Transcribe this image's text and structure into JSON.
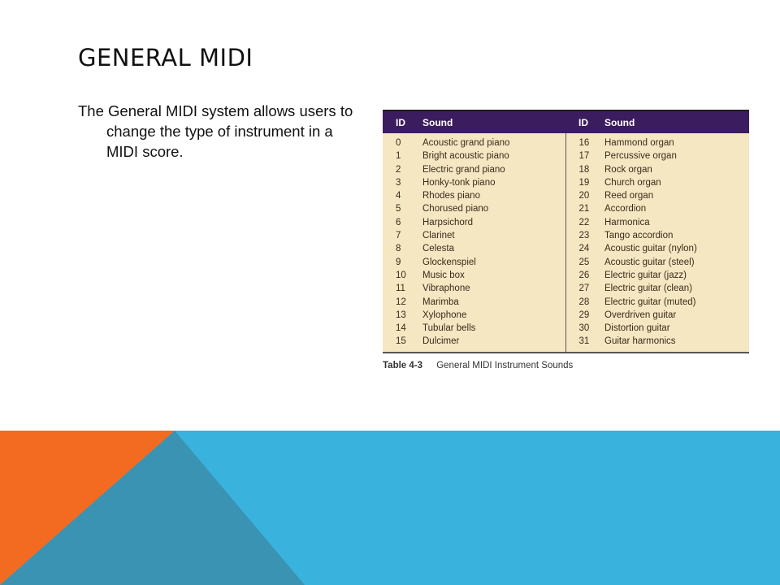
{
  "slide": {
    "title": "GENERAL MIDI",
    "body": "The General MIDI system allows users to change the type of instrument in a MIDI score."
  },
  "table": {
    "headers": {
      "id": "ID",
      "sound": "Sound"
    },
    "rows": [
      {
        "id1": "0",
        "sound1": "Acoustic grand piano",
        "id2": "16",
        "sound2": "Hammond organ"
      },
      {
        "id1": "1",
        "sound1": "Bright acoustic piano",
        "id2": "17",
        "sound2": "Percussive organ"
      },
      {
        "id1": "2",
        "sound1": "Electric grand piano",
        "id2": "18",
        "sound2": "Rock organ"
      },
      {
        "id1": "3",
        "sound1": "Honky-tonk piano",
        "id2": "19",
        "sound2": "Church organ"
      },
      {
        "id1": "4",
        "sound1": "Rhodes piano",
        "id2": "20",
        "sound2": "Reed organ"
      },
      {
        "id1": "5",
        "sound1": "Chorused piano",
        "id2": "21",
        "sound2": "Accordion"
      },
      {
        "id1": "6",
        "sound1": "Harpsichord",
        "id2": "22",
        "sound2": "Harmonica"
      },
      {
        "id1": "7",
        "sound1": "Clarinet",
        "id2": "23",
        "sound2": "Tango accordion"
      },
      {
        "id1": "8",
        "sound1": "Celesta",
        "id2": "24",
        "sound2": "Acoustic guitar (nylon)"
      },
      {
        "id1": "9",
        "sound1": "Glockenspiel",
        "id2": "25",
        "sound2": "Acoustic guitar (steel)"
      },
      {
        "id1": "10",
        "sound1": "Music box",
        "id2": "26",
        "sound2": "Electric guitar (jazz)"
      },
      {
        "id1": "11",
        "sound1": "Vibraphone",
        "id2": "27",
        "sound2": "Electric guitar (clean)"
      },
      {
        "id1": "12",
        "sound1": "Marimba",
        "id2": "28",
        "sound2": "Electric guitar (muted)"
      },
      {
        "id1": "13",
        "sound1": "Xylophone",
        "id2": "29",
        "sound2": "Overdriven guitar"
      },
      {
        "id1": "14",
        "sound1": "Tubular bells",
        "id2": "30",
        "sound2": "Distortion guitar"
      },
      {
        "id1": "15",
        "sound1": "Dulcimer",
        "id2": "31",
        "sound2": "Guitar harmonics"
      }
    ],
    "caption_label": "Table 4-3",
    "caption_text": "General MIDI Instrument Sounds"
  },
  "colors": {
    "header_bg": "#3b1c5e",
    "table_bg": "#f6e7c3",
    "accent_orange": "#f26b21",
    "accent_blue": "#3ab2de",
    "accent_teal": "#3a93b3"
  }
}
